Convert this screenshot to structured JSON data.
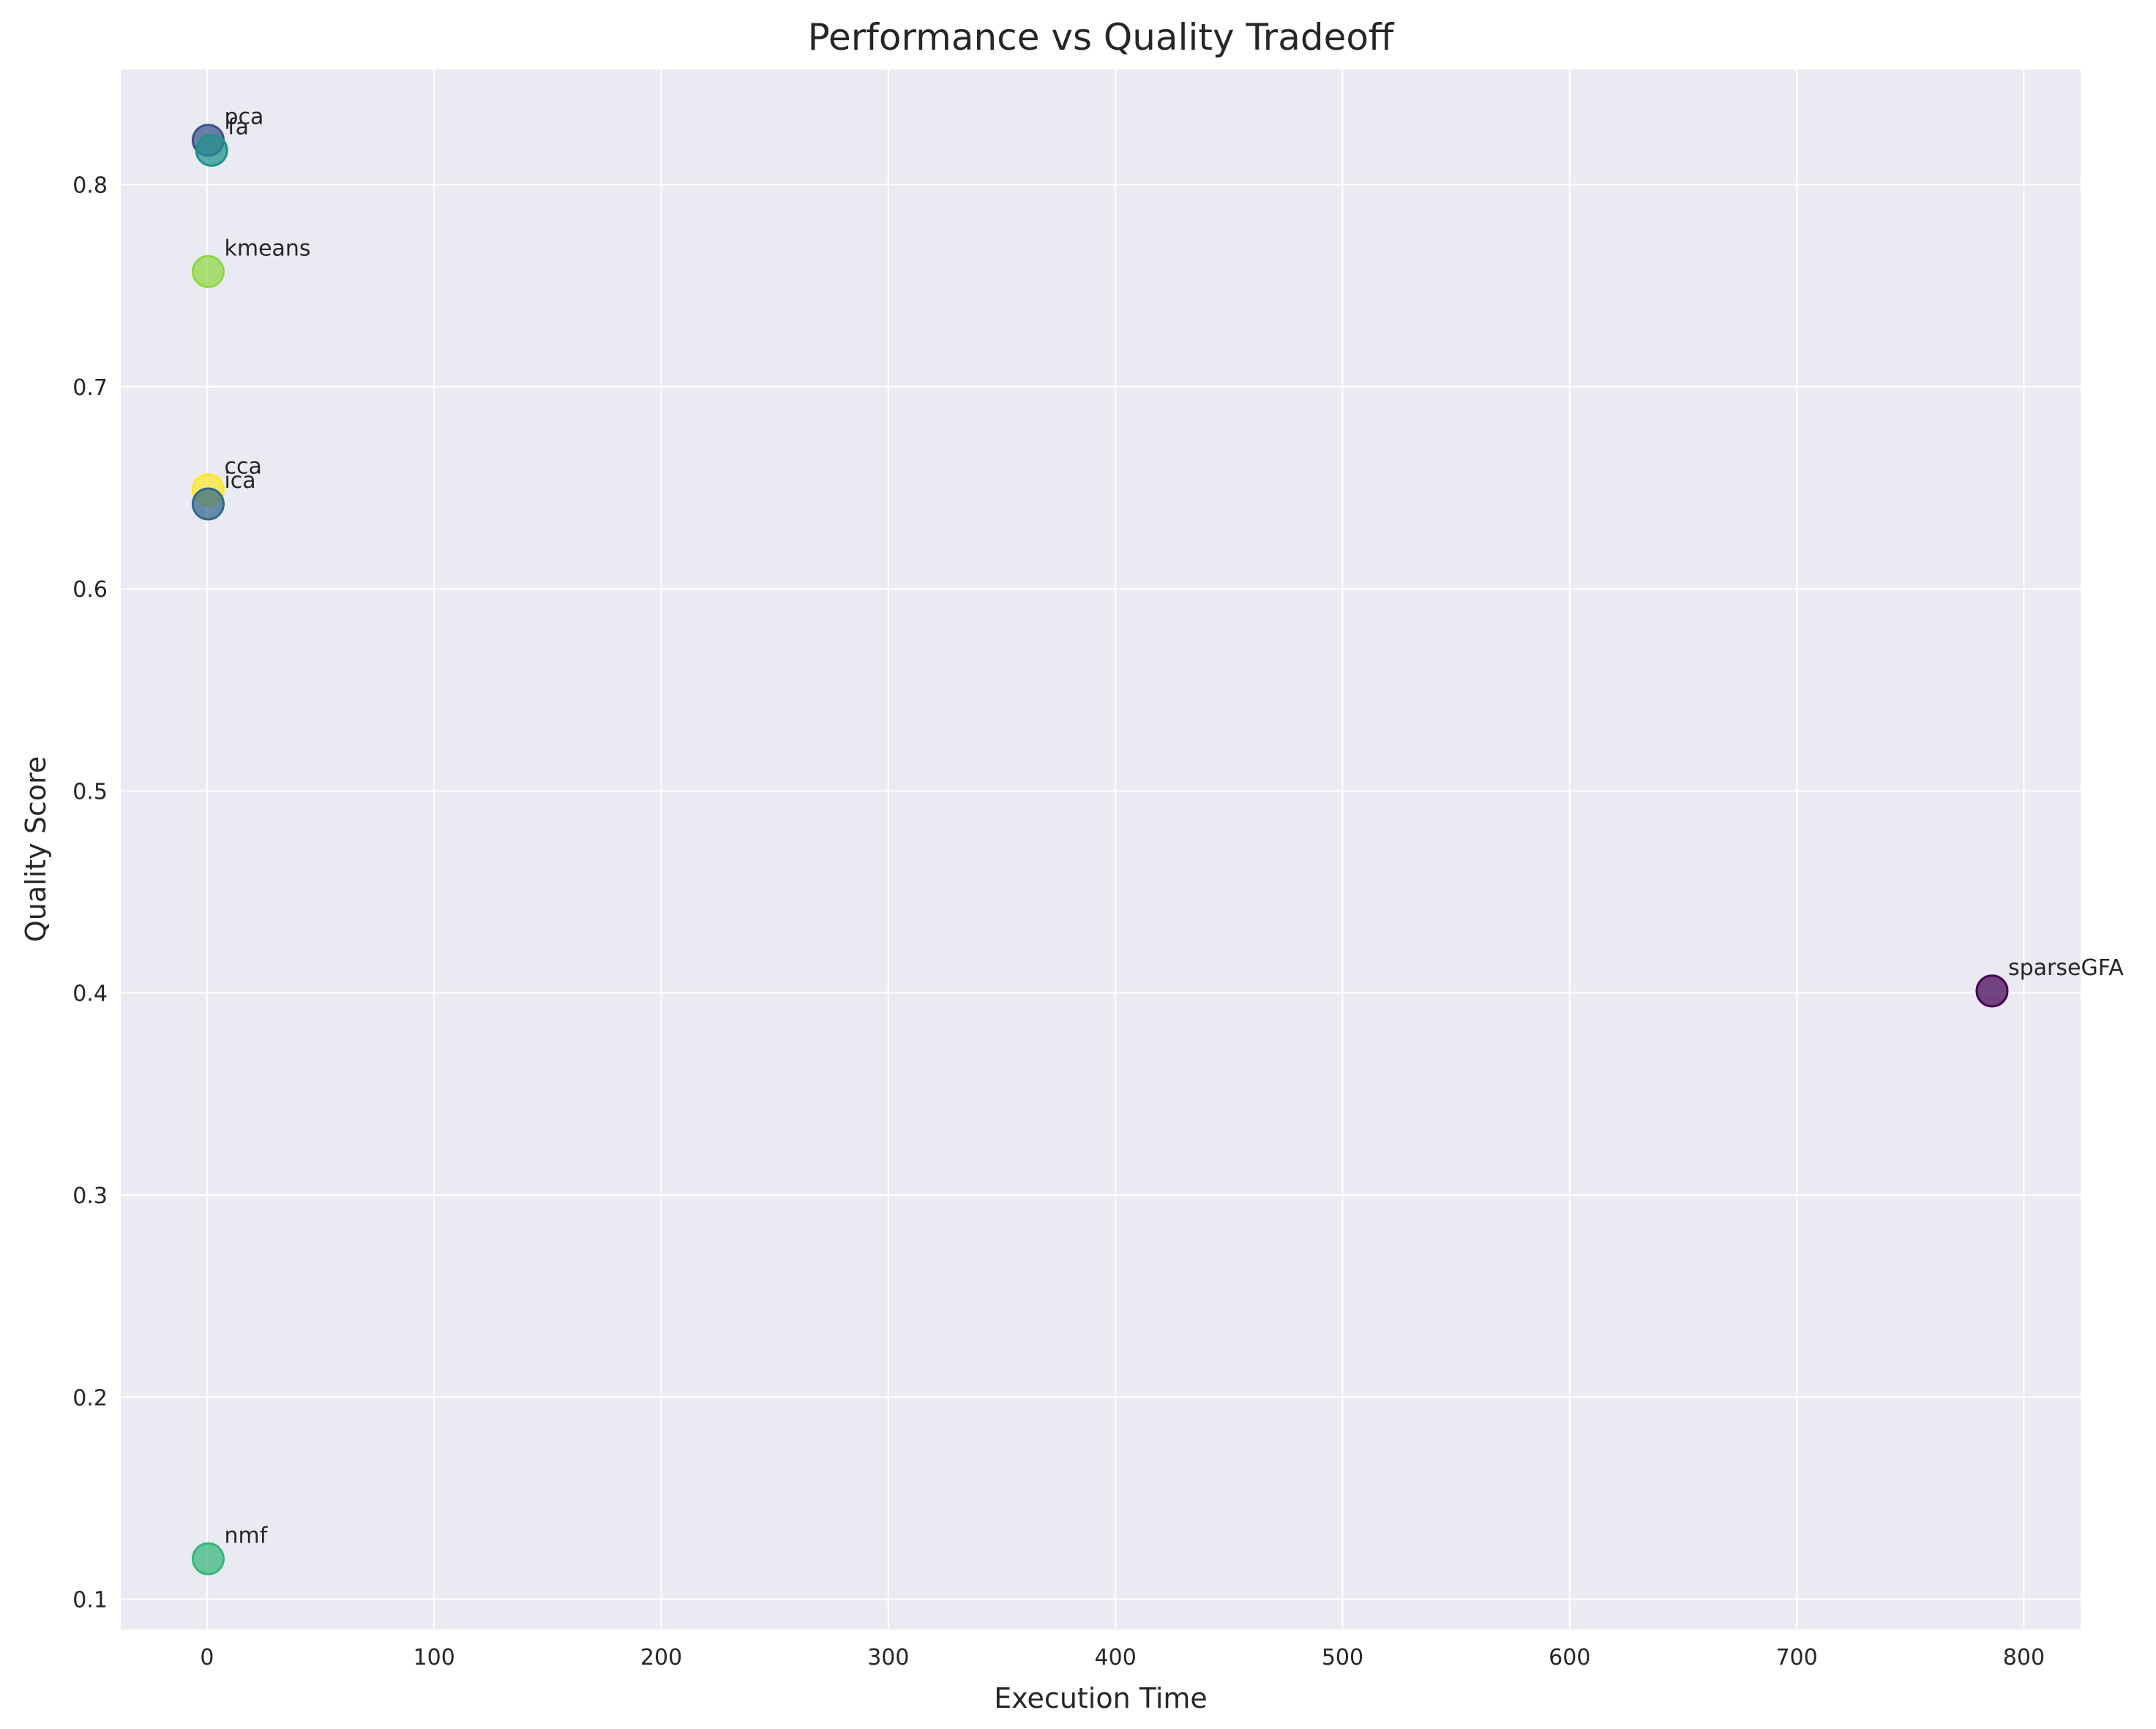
{
  "chart_data": {
    "type": "scatter",
    "title": "Performance vs Quality Tradeoff",
    "xlabel": "Execution Time",
    "ylabel": "Quality Score",
    "xlim": [
      -38,
      825
    ],
    "ylim": [
      0.085,
      0.857
    ],
    "xticks": [
      0,
      100,
      200,
      300,
      400,
      500,
      600,
      700,
      800
    ],
    "yticks": [
      0.1,
      0.2,
      0.3,
      0.4,
      0.5,
      0.6,
      0.7,
      0.8
    ],
    "grid": true,
    "background_color": "#eaeaf2",
    "grid_color": "#ffffff",
    "points": [
      {
        "label": "sparseGFA",
        "x": 786,
        "y": 0.401,
        "color": "#440154"
      },
      {
        "label": "pca",
        "x": 0.5,
        "y": 0.822,
        "color": "#3b528b"
      },
      {
        "label": "fa",
        "x": 2,
        "y": 0.817,
        "color": "#21918c"
      },
      {
        "label": "kmeans",
        "x": 0.5,
        "y": 0.757,
        "color": "#90d743"
      },
      {
        "label": "cca",
        "x": 0.5,
        "y": 0.649,
        "color": "#fde725"
      },
      {
        "label": "ica",
        "x": 0.5,
        "y": 0.642,
        "color": "#31688e"
      },
      {
        "label": "nmf",
        "x": 0.5,
        "y": 0.12,
        "color": "#35b779"
      }
    ]
  }
}
